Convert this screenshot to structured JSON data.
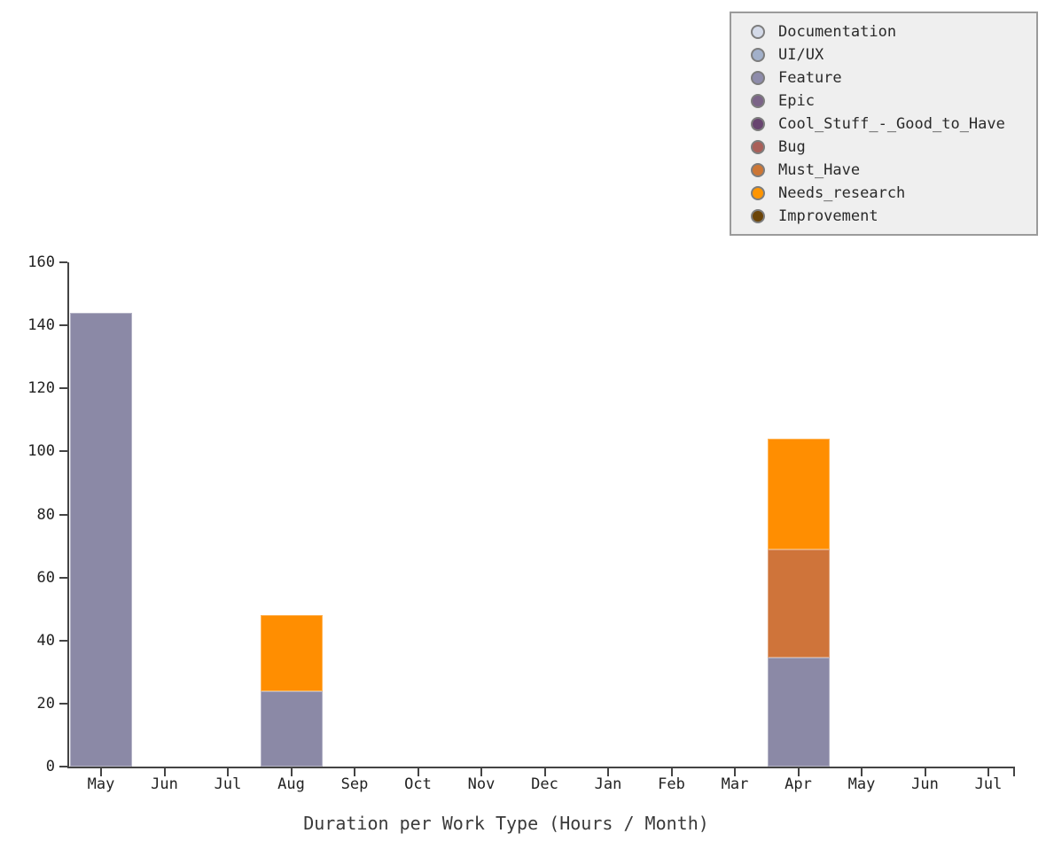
{
  "legend": {
    "items": [
      {
        "label": "Documentation",
        "color": "#d4dae8"
      },
      {
        "label": "UI/UX",
        "color": "#a2b0ca"
      },
      {
        "label": "Feature",
        "color": "#8e8cab"
      },
      {
        "label": "Epic",
        "color": "#7b6488"
      },
      {
        "label": "Cool_Stuff_-_Good_to_Have",
        "color": "#684570"
      },
      {
        "label": "Bug",
        "color": "#a95f58"
      },
      {
        "label": "Must_Have",
        "color": "#cc7635"
      },
      {
        "label": "Needs_research",
        "color": "#ff9501"
      },
      {
        "label": "Improvement",
        "color": "#6b4408"
      }
    ]
  },
  "chart_data": {
    "type": "bar",
    "stacked": true,
    "xlabel": "Duration per Work Type (Hours / Month)",
    "ylabel": "",
    "categories": [
      "May",
      "Jun",
      "Jul",
      "Aug",
      "Sep",
      "Oct",
      "Nov",
      "Dec",
      "Jan",
      "Feb",
      "Mar",
      "Apr",
      "May",
      "Jun",
      "Jul"
    ],
    "series": [
      {
        "name": "Feature",
        "color": "#8b89a6",
        "values": [
          144,
          0,
          0,
          24,
          0,
          0,
          0,
          0,
          0,
          0,
          0,
          34.5,
          0,
          0,
          0
        ]
      },
      {
        "name": "Must_Have",
        "color": "#cf743a",
        "values": [
          0,
          0,
          0,
          0,
          0,
          0,
          0,
          0,
          0,
          0,
          0,
          34.5,
          0,
          0,
          0
        ]
      },
      {
        "name": "Needs_research",
        "color": "#ff8e01",
        "values": [
          0,
          0,
          0,
          24,
          0,
          0,
          0,
          0,
          0,
          0,
          0,
          35,
          0,
          0,
          0
        ]
      }
    ],
    "ylim": [
      0,
      160
    ],
    "yticks": [
      0,
      20,
      40,
      60,
      80,
      100,
      120,
      140,
      160
    ],
    "grid": false,
    "legend_position": "top-right"
  }
}
